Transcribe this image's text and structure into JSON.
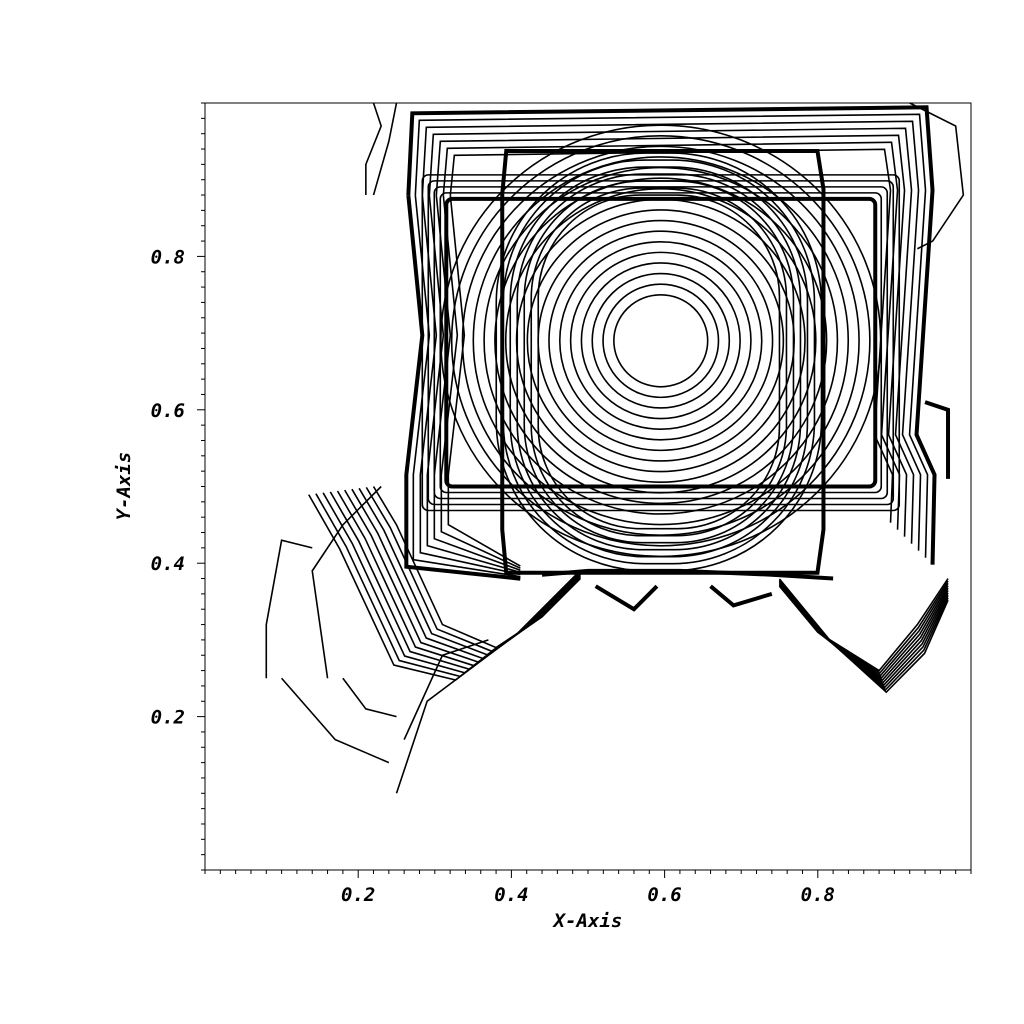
{
  "chart_data": {
    "type": "contour",
    "xlabel": "X-Axis",
    "ylabel": "Y-Axis",
    "xlim": [
      0.0,
      1.0
    ],
    "ylim": [
      0.0,
      1.0
    ],
    "x_ticks": [
      0.2,
      0.4,
      0.6,
      0.8
    ],
    "y_ticks": [
      0.2,
      0.4,
      0.6,
      0.8
    ],
    "x_tick_labels": [
      "0.2",
      "0.4",
      "0.6",
      "0.8"
    ],
    "y_tick_labels": [
      "0.2",
      "0.4",
      "0.6",
      "0.8"
    ],
    "minor_tick_step": 0.02,
    "grid": false,
    "center": [
      0.595,
      0.69
    ],
    "inner_square": {
      "x": [
        0.375,
        0.81
      ],
      "y": [
        0.385,
        0.94
      ]
    },
    "outer_square": {
      "x": [
        0.24,
        0.97
      ],
      "y": [
        0.38,
        1.0
      ]
    },
    "line_color": "#000000"
  }
}
